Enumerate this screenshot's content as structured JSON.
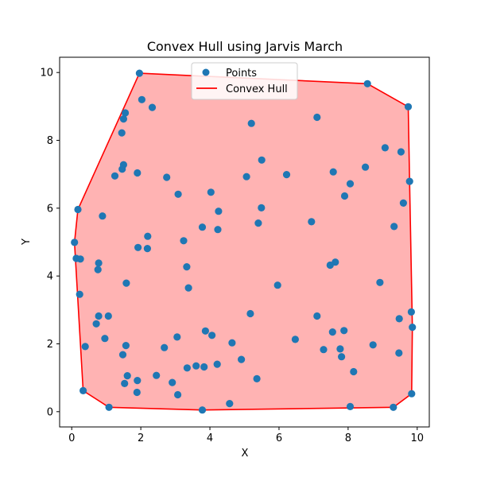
{
  "chart_data": {
    "type": "scatter",
    "title": "Convex Hull using Jarvis March",
    "xlabel": "X",
    "ylabel": "Y",
    "xlim": [
      -0.35,
      10.35
    ],
    "ylim": [
      -0.45,
      10.45
    ],
    "xticks": [
      "0",
      "2",
      "4",
      "6",
      "8",
      "10"
    ],
    "yticks": [
      "0",
      "2",
      "4",
      "6",
      "8",
      "10"
    ],
    "grid": false,
    "legend_position": "upper-center",
    "legend": [
      {
        "label": "Points",
        "kind": "marker",
        "color": "#1f77b4"
      },
      {
        "label": "Convex Hull",
        "kind": "line",
        "color": "#ff0000"
      }
    ],
    "hull_fill_color": "#ffb3b3",
    "series": [
      {
        "name": "Points",
        "color": "#1f77b4",
        "points": [
          [
            1.96,
            9.98
          ],
          [
            8.56,
            9.67
          ],
          [
            9.74,
            8.99
          ],
          [
            2.03,
            9.2
          ],
          [
            2.33,
            8.97
          ],
          [
            1.55,
            8.81
          ],
          [
            1.5,
            8.63
          ],
          [
            1.45,
            8.22
          ],
          [
            5.2,
            8.5
          ],
          [
            7.1,
            8.68
          ],
          [
            9.07,
            7.78
          ],
          [
            9.53,
            7.66
          ],
          [
            5.5,
            7.42
          ],
          [
            8.5,
            7.21
          ],
          [
            7.57,
            7.07
          ],
          [
            1.5,
            7.28
          ],
          [
            1.46,
            7.15
          ],
          [
            1.9,
            7.04
          ],
          [
            1.25,
            6.95
          ],
          [
            2.75,
            6.91
          ],
          [
            5.06,
            6.93
          ],
          [
            6.22,
            6.99
          ],
          [
            9.78,
            6.79
          ],
          [
            0.18,
            5.96
          ],
          [
            8.06,
            6.72
          ],
          [
            7.9,
            6.36
          ],
          [
            3.08,
            6.41
          ],
          [
            4.03,
            6.47
          ],
          [
            9.6,
            6.15
          ],
          [
            0.89,
            5.77
          ],
          [
            4.25,
            5.91
          ],
          [
            5.49,
            6.01
          ],
          [
            6.94,
            5.6
          ],
          [
            5.4,
            5.56
          ],
          [
            9.33,
            5.46
          ],
          [
            3.78,
            5.44
          ],
          [
            4.23,
            5.37
          ],
          [
            2.2,
            5.17
          ],
          [
            3.24,
            5.04
          ],
          [
            0.08,
            4.99
          ],
          [
            1.92,
            4.84
          ],
          [
            2.19,
            4.81
          ],
          [
            0.13,
            4.52
          ],
          [
            0.25,
            4.5
          ],
          [
            0.78,
            4.38
          ],
          [
            0.76,
            4.19
          ],
          [
            3.33,
            4.27
          ],
          [
            7.63,
            4.41
          ],
          [
            7.48,
            4.32
          ],
          [
            1.58,
            3.79
          ],
          [
            3.38,
            3.65
          ],
          [
            5.96,
            3.73
          ],
          [
            8.92,
            3.81
          ],
          [
            0.23,
            3.46
          ],
          [
            0.78,
            2.82
          ],
          [
            1.06,
            2.82
          ],
          [
            7.1,
            2.82
          ],
          [
            5.17,
            2.89
          ],
          [
            9.83,
            2.94
          ],
          [
            0.71,
            2.59
          ],
          [
            9.48,
            2.74
          ],
          [
            9.86,
            2.49
          ],
          [
            3.87,
            2.38
          ],
          [
            4.06,
            2.25
          ],
          [
            7.55,
            2.35
          ],
          [
            7.88,
            2.39
          ],
          [
            0.96,
            2.16
          ],
          [
            3.05,
            2.2
          ],
          [
            6.47,
            2.13
          ],
          [
            1.57,
            1.95
          ],
          [
            4.64,
            2.03
          ],
          [
            8.72,
            1.97
          ],
          [
            0.39,
            1.92
          ],
          [
            2.68,
            1.89
          ],
          [
            7.29,
            1.83
          ],
          [
            7.77,
            1.85
          ],
          [
            9.47,
            1.73
          ],
          [
            1.48,
            1.68
          ],
          [
            7.81,
            1.62
          ],
          [
            4.91,
            1.54
          ],
          [
            4.21,
            1.4
          ],
          [
            3.6,
            1.35
          ],
          [
            3.83,
            1.32
          ],
          [
            3.34,
            1.29
          ],
          [
            8.16,
            1.18
          ],
          [
            1.61,
            1.06
          ],
          [
            2.45,
            1.07
          ],
          [
            5.36,
            0.97
          ],
          [
            1.9,
            0.92
          ],
          [
            2.91,
            0.86
          ],
          [
            1.53,
            0.83
          ],
          [
            0.33,
            0.62
          ],
          [
            1.89,
            0.57
          ],
          [
            3.07,
            0.5
          ],
          [
            9.84,
            0.53
          ],
          [
            4.57,
            0.24
          ],
          [
            8.06,
            0.15
          ],
          [
            9.31,
            0.13
          ],
          [
            1.08,
            0.13
          ],
          [
            3.78,
            0.05
          ]
        ]
      },
      {
        "name": "Convex Hull",
        "color": "#ff0000",
        "closed": true,
        "points": [
          [
            1.96,
            9.98
          ],
          [
            8.56,
            9.67
          ],
          [
            9.74,
            8.99
          ],
          [
            9.78,
            6.79
          ],
          [
            9.86,
            2.49
          ],
          [
            9.84,
            0.53
          ],
          [
            9.31,
            0.13
          ],
          [
            3.78,
            0.05
          ],
          [
            1.08,
            0.13
          ],
          [
            0.33,
            0.62
          ],
          [
            0.08,
            4.99
          ],
          [
            0.18,
            5.96
          ]
        ]
      }
    ]
  }
}
